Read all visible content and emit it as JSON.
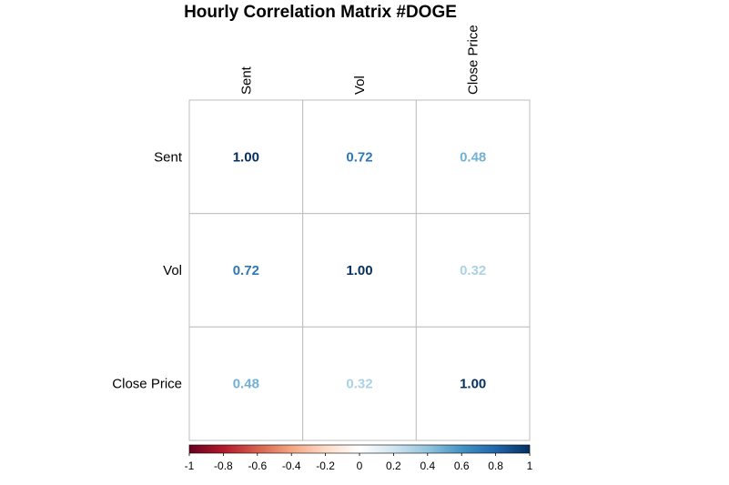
{
  "chart_data": {
    "type": "heatmap",
    "title": "Hourly Correlation Matrix #DOGE",
    "rows": [
      "Sent",
      "Vol",
      "Close Price"
    ],
    "columns": [
      "Sent",
      "Vol",
      "Close Price"
    ],
    "values": [
      [
        1.0,
        0.72,
        0.48
      ],
      [
        0.72,
        1.0,
        0.32
      ],
      [
        0.48,
        0.32,
        1.0
      ]
    ],
    "value_labels": [
      [
        "1.00",
        "0.72",
        "0.48"
      ],
      [
        "0.72",
        "1.00",
        "0.32"
      ],
      [
        "0.48",
        "0.32",
        "1.00"
      ]
    ],
    "color_scale": {
      "range": [
        -1,
        1
      ],
      "ticks": [
        "-1",
        "-0.8",
        "-0.6",
        "-0.4",
        "-0.2",
        "0",
        "0.2",
        "0.4",
        "0.6",
        "0.8",
        "1"
      ],
      "tick_values": [
        -1,
        -0.8,
        -0.6,
        -0.4,
        -0.2,
        0,
        0.2,
        0.4,
        0.6,
        0.8,
        1
      ],
      "stops": [
        "#67001F",
        "#B2182B",
        "#D6604D",
        "#F4A582",
        "#FDDBC7",
        "#FFFFFF",
        "#D1E5F0",
        "#92C5DE",
        "#4393C3",
        "#2166AC",
        "#053061"
      ],
      "legend_position": "bottom"
    },
    "grid": true,
    "cell_fill": "#FFFFFF",
    "grid_color": "#BEBEBE"
  }
}
